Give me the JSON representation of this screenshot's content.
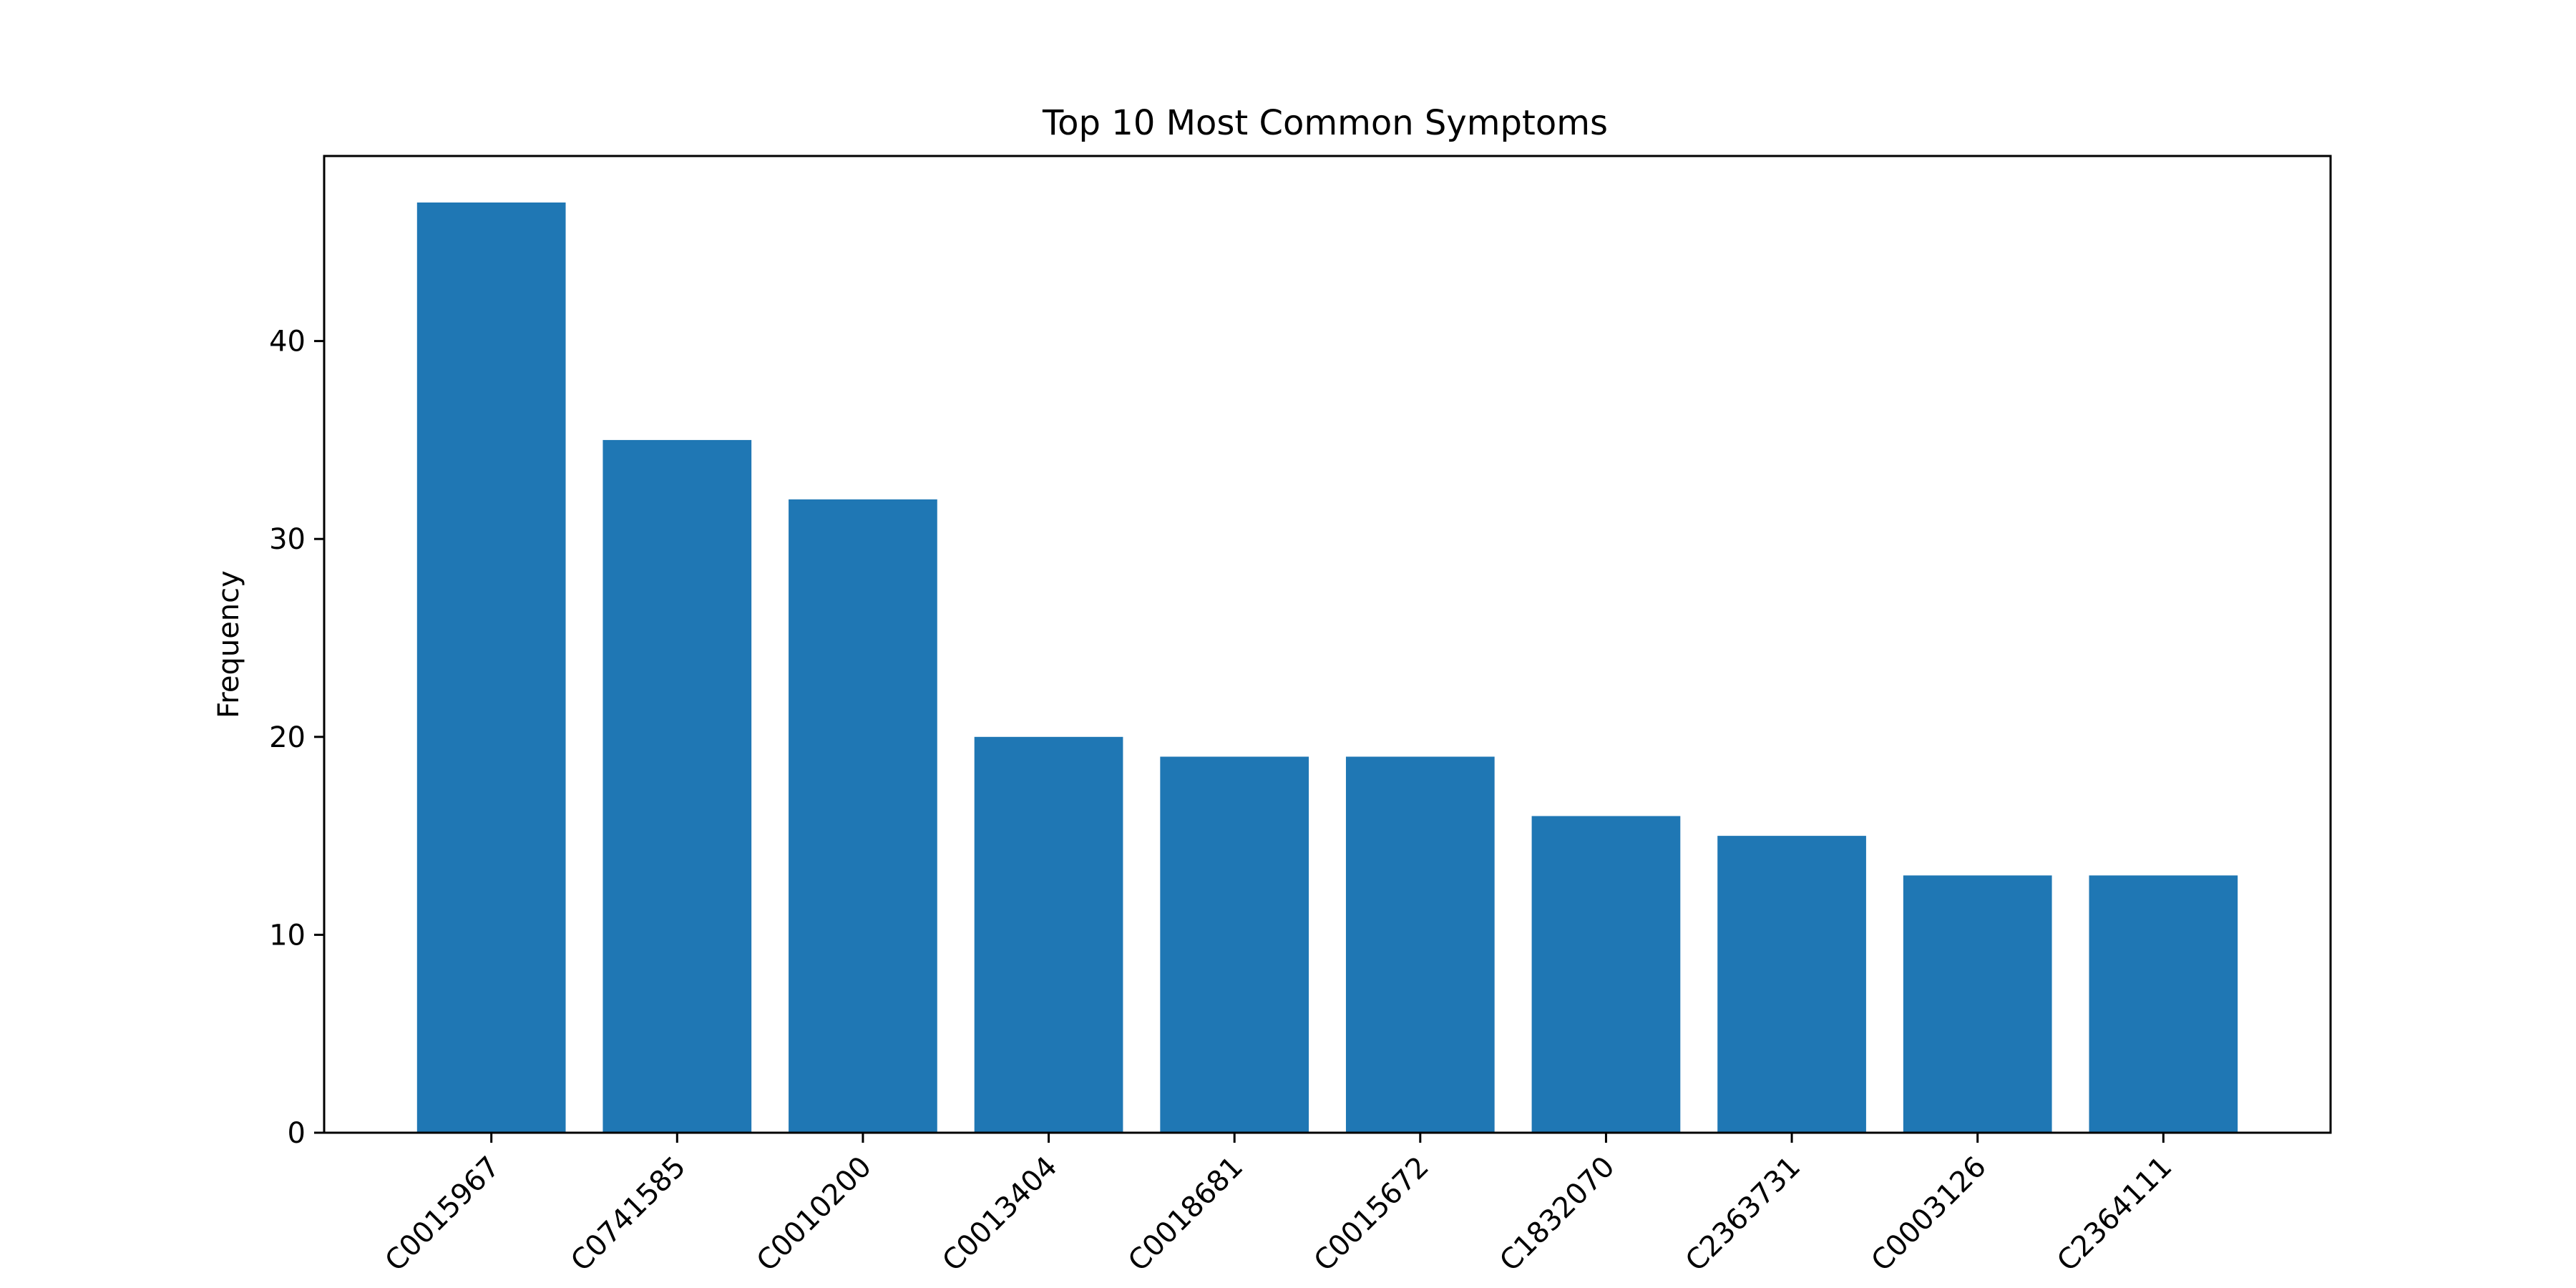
{
  "chart_data": {
    "type": "bar",
    "title": "Top 10 Most Common Symptoms",
    "xlabel": "",
    "ylabel": "Frequency",
    "categories": [
      "C0015967",
      "C0741585",
      "C0010200",
      "C0013404",
      "C0018681",
      "C0015672",
      "C1832070",
      "C2363731",
      "C0003126",
      "C2364111"
    ],
    "values": [
      47,
      35,
      32,
      20,
      19,
      19,
      16,
      15,
      13,
      13
    ],
    "ylim": [
      0,
      49.35
    ],
    "yticks": [
      0,
      10,
      20,
      30,
      40
    ],
    "grid": false,
    "bar_color": "#1f77b4"
  }
}
